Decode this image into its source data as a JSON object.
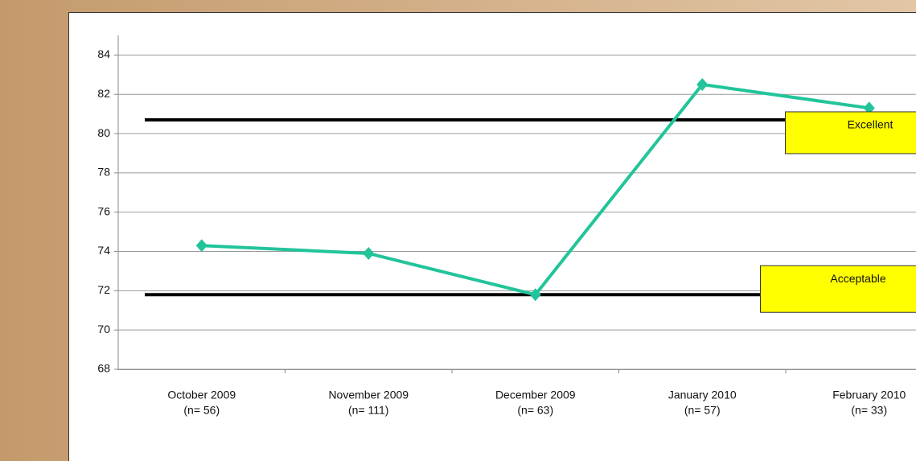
{
  "chart_data": {
    "type": "line",
    "categories": [
      "October 2009",
      "November 2009",
      "December 2009",
      "January 2010",
      "February 2010"
    ],
    "category_notes": [
      "(n= 56)",
      "(n= 111)",
      "(n= 63)",
      "(n= 57)",
      "(n= 33)"
    ],
    "series": [
      {
        "color": "#22c49a",
        "values": [
          74.3,
          73.9,
          71.8,
          82.5,
          81.3
        ]
      }
    ],
    "thresholds": [
      {
        "label": "Excellent",
        "value": 80.7
      },
      {
        "label": "Acceptable",
        "value": 71.8
      }
    ],
    "ylim": [
      68,
      85
    ],
    "yticks": [
      68,
      70,
      72,
      74,
      76,
      78,
      80,
      82,
      84
    ],
    "grid": true
  }
}
